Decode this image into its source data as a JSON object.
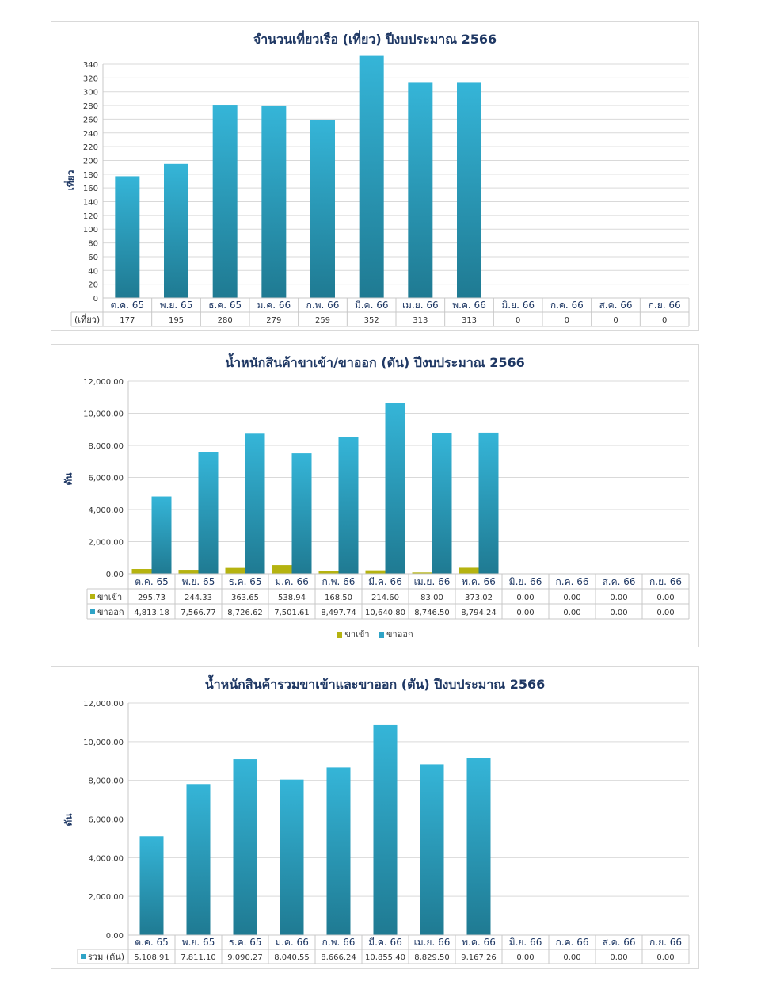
{
  "colors": {
    "bar_top": "#35b5d8",
    "bar_bottom": "#1f7a92",
    "import": "#b5b310",
    "grid": "#d9d9d9",
    "title": "#1f3864"
  },
  "chart_data": [
    {
      "type": "bar",
      "title": "จำนวนเที่ยวเรือ (เที่ยว) ปีงบประมาณ 2566",
      "ylabel": "เที่ยว",
      "ylim": [
        0,
        340
      ],
      "yticks": [
        0,
        20,
        40,
        60,
        80,
        100,
        120,
        140,
        160,
        180,
        200,
        220,
        240,
        260,
        280,
        300,
        320,
        340
      ],
      "categories": [
        "ต.ค. 65",
        "พ.ย. 65",
        "ธ.ค. 65",
        "ม.ค. 66",
        "ก.พ. 66",
        "มี.ค. 66",
        "เม.ย. 66",
        "พ.ค. 66",
        "มิ.ย. 66",
        "ก.ค. 66",
        "ส.ค. 66",
        "ก.ย. 66"
      ],
      "series": [
        {
          "name": "(เที่ยว)",
          "values": [
            177,
            195,
            280,
            279,
            259,
            352,
            313,
            313,
            0,
            0,
            0,
            0
          ],
          "labels": [
            "177",
            "195",
            "280",
            "279",
            "259",
            "352",
            "313",
            "313",
            "0",
            "0",
            "0",
            "0"
          ]
        }
      ],
      "grid": true
    },
    {
      "type": "bar",
      "title": "น้ำหนักสินค้าขาเข้า/ขาออก (ตัน) ปีงบประมาณ 2566",
      "ylabel": "ตัน",
      "ylim": [
        0,
        12000
      ],
      "yticks": [
        "0.00",
        "2,000.00",
        "4,000.00",
        "6,000.00",
        "8,000.00",
        "10,000.00",
        "12,000.00"
      ],
      "categories": [
        "ต.ค. 65",
        "พ.ย. 65",
        "ธ.ค. 65",
        "ม.ค. 66",
        "ก.พ. 66",
        "มี.ค. 66",
        "เม.ย. 66",
        "พ.ค. 66",
        "มิ.ย. 66",
        "ก.ค. 66",
        "ส.ค. 66",
        "ก.ย. 66"
      ],
      "series": [
        {
          "name": "ขาเข้า",
          "values": [
            295.73,
            244.33,
            363.65,
            538.94,
            168.5,
            214.6,
            83.0,
            373.02,
            0,
            0,
            0,
            0
          ],
          "labels": [
            "295.73",
            "244.33",
            "363.65",
            "538.94",
            "168.50",
            "214.60",
            "83.00",
            "373.02",
            "0.00",
            "0.00",
            "0.00",
            "0.00"
          ]
        },
        {
          "name": "ขาออก",
          "values": [
            4813.18,
            7566.77,
            8726.62,
            7501.61,
            8497.74,
            10640.8,
            8746.5,
            8794.24,
            0,
            0,
            0,
            0
          ],
          "labels": [
            "4,813.18",
            "7,566.77",
            "8,726.62",
            "7,501.61",
            "8,497.74",
            "10,640.80",
            "8,746.50",
            "8,794.24",
            "0.00",
            "0.00",
            "0.00",
            "0.00"
          ]
        }
      ],
      "legend": [
        "ขาเข้า",
        "ขาออก"
      ],
      "legend_position": "bottom",
      "grid": true
    },
    {
      "type": "bar",
      "title": "น้ำหนักสินค้ารวมขาเข้าและขาออก (ตัน) ปีงบประมาณ 2566",
      "ylabel": "ตัน",
      "ylim": [
        0,
        12000
      ],
      "yticks": [
        "0.00",
        "2,000.00",
        "4,000.00",
        "6,000.00",
        "8,000.00",
        "10,000.00",
        "12,000.00"
      ],
      "categories": [
        "ต.ค. 65",
        "พ.ย. 65",
        "ธ.ค. 65",
        "ม.ค. 66",
        "ก.พ. 66",
        "มี.ค. 66",
        "เม.ย. 66",
        "พ.ค. 66",
        "มิ.ย. 66",
        "ก.ค. 66",
        "ส.ค. 66",
        "ก.ย. 66"
      ],
      "series": [
        {
          "name": "รวม (ตัน)",
          "values": [
            5108.91,
            7811.1,
            9090.27,
            8040.55,
            8666.24,
            10855.4,
            8829.5,
            9167.26,
            0,
            0,
            0,
            0
          ],
          "labels": [
            "5,108.91",
            "7,811.10",
            "9,090.27",
            "8,040.55",
            "8,666.24",
            "10,855.40",
            "8,829.50",
            "9,167.26",
            "0.00",
            "0.00",
            "0.00",
            "0.00"
          ]
        }
      ],
      "grid": true
    }
  ]
}
